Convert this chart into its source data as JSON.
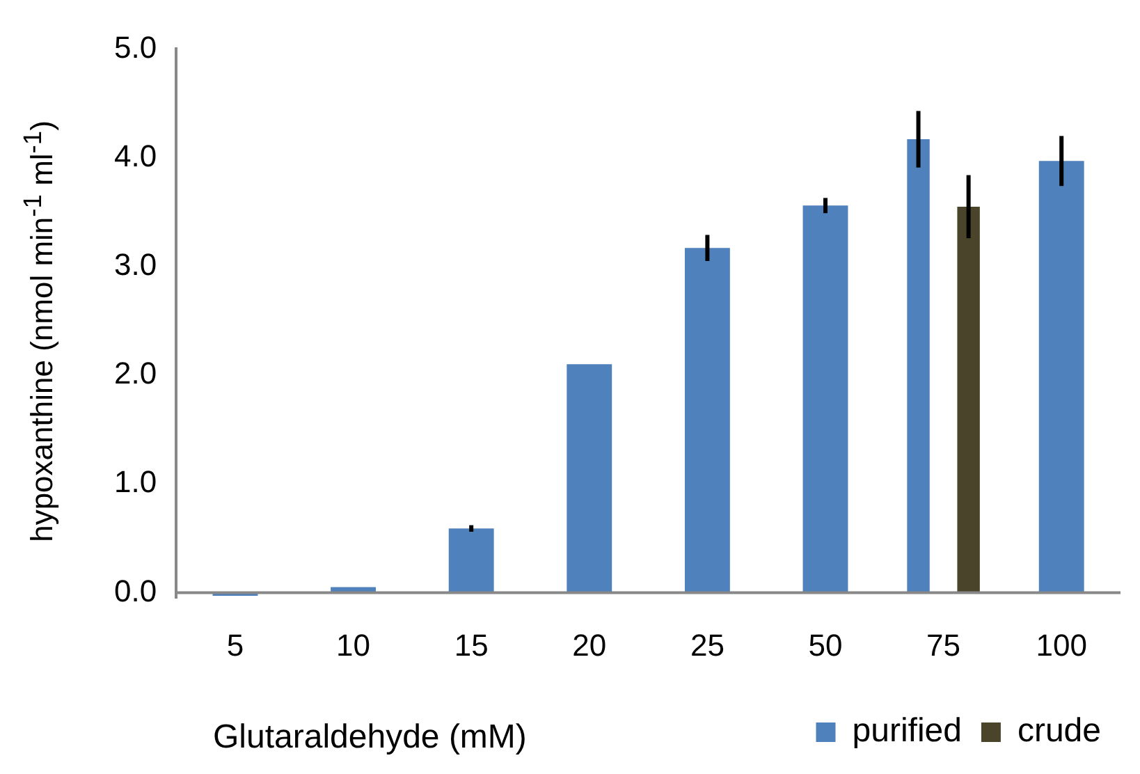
{
  "chart_data": {
    "type": "bar",
    "xlabel": "Glutaraldehyde (mM)",
    "ylabel": "hypoxanthine (nmol min$^{-1}$ ml$^{-1}$)",
    "categories": [
      "5",
      "10",
      "15",
      "20",
      "25",
      "50",
      "75",
      "100"
    ],
    "series": [
      {
        "name": "purified",
        "color": "#4f81bd",
        "values": [
          -0.03,
          0.05,
          0.59,
          2.1,
          3.17,
          3.56,
          4.17,
          3.97
        ],
        "errors": [
          null,
          null,
          0.03,
          null,
          0.12,
          0.07,
          0.26,
          0.23
        ]
      },
      {
        "name": "crude",
        "color": "#4a452a",
        "values": [
          null,
          null,
          null,
          null,
          null,
          null,
          3.55,
          null
        ],
        "errors": [
          null,
          null,
          null,
          null,
          null,
          null,
          0.29,
          null
        ]
      }
    ],
    "ylim": [
      -0.05,
      5
    ],
    "yticks": [
      {
        "value": 0,
        "label": "0.0"
      },
      {
        "value": 1,
        "label": "1.0"
      },
      {
        "value": 2,
        "label": "2.0"
      },
      {
        "value": 3,
        "label": "3.0"
      },
      {
        "value": 4,
        "label": "4.0"
      },
      {
        "value": 5,
        "label": "5.0"
      }
    ],
    "grid": false,
    "legend": "bottom right"
  }
}
